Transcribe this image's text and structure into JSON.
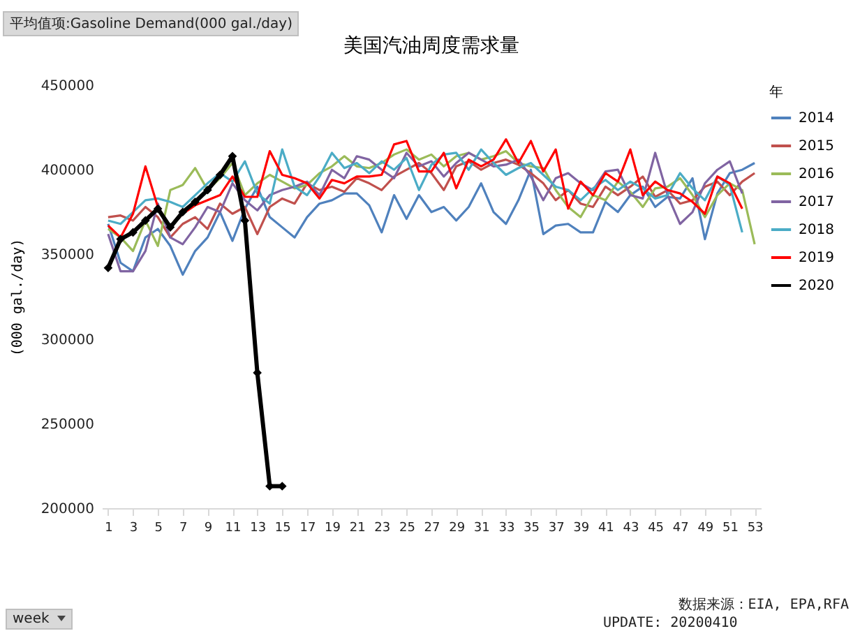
{
  "chart_data": {
    "type": "line",
    "title": "美国汽油周度需求量",
    "ylabel": "(000 gal./day)",
    "legend_title": "年",
    "legend": "right",
    "grid": false,
    "annotations": [
      "平均值项:Gasoline Demand(000 gal./day)",
      "数据来源：EIA, EPA,RFA",
      "UPDATE: 20200410",
      "week"
    ],
    "xlim": [
      0.5,
      53.5
    ],
    "xticks": [
      1,
      3,
      5,
      7,
      9,
      11,
      13,
      15,
      17,
      19,
      21,
      23,
      25,
      27,
      29,
      31,
      33,
      35,
      37,
      39,
      41,
      43,
      45,
      47,
      49,
      51,
      53
    ],
    "ylim": [
      200000,
      450000
    ],
    "yticks": [
      200000,
      250000,
      300000,
      350000,
      400000,
      450000
    ],
    "x": [
      1,
      2,
      3,
      4,
      5,
      6,
      7,
      8,
      9,
      10,
      11,
      12,
      13,
      14,
      15,
      16,
      17,
      18,
      19,
      20,
      21,
      22,
      23,
      24,
      25,
      26,
      27,
      28,
      29,
      30,
      31,
      32,
      33,
      34,
      35,
      36,
      37,
      38,
      39,
      40,
      41,
      42,
      43,
      44,
      45,
      46,
      47,
      48,
      49,
      50,
      51,
      52,
      53
    ],
    "series": [
      {
        "name": "2014",
        "color": "#4f81bd",
        "values": [
          368000,
          345000,
          340000,
          360000,
          365000,
          355000,
          338000,
          352000,
          360000,
          375000,
          358000,
          377000,
          390000,
          372000,
          366000,
          360000,
          372000,
          380000,
          382000,
          386000,
          386000,
          379000,
          363000,
          385000,
          371000,
          385000,
          375000,
          378000,
          370000,
          378000,
          392000,
          375000,
          368000,
          382000,
          400000,
          362000,
          367000,
          368000,
          363000,
          363000,
          381000,
          375000,
          385000,
          390000,
          378000,
          384000,
          383000,
          395000,
          359000,
          386000,
          398000,
          400000,
          404000
        ]
      },
      {
        "name": "2015",
        "color": "#c0504d",
        "values": [
          372000,
          373000,
          370000,
          378000,
          372000,
          360000,
          368000,
          372000,
          365000,
          380000,
          374000,
          378000,
          362000,
          378000,
          383000,
          380000,
          392000,
          388000,
          390000,
          387000,
          395000,
          392000,
          388000,
          396000,
          400000,
          404000,
          398000,
          388000,
          402000,
          405000,
          400000,
          404000,
          406000,
          403000,
          398000,
          392000,
          382000,
          388000,
          380000,
          378000,
          390000,
          385000,
          390000,
          396000,
          384000,
          388000,
          380000,
          382000,
          390000,
          393000,
          385000,
          393000,
          398000
        ]
      },
      {
        "name": "2016",
        "color": "#9bbb59",
        "values": [
          365000,
          360000,
          352000,
          370000,
          355000,
          388000,
          391000,
          401000,
          388000,
          395000,
          404000,
          385000,
          392000,
          397000,
          393000,
          389000,
          391000,
          398000,
          402000,
          408000,
          402000,
          401000,
          404000,
          409000,
          412000,
          406000,
          409000,
          402000,
          408000,
          410000,
          406000,
          408000,
          411000,
          404000,
          402000,
          401000,
          388000,
          378000,
          372000,
          385000,
          382000,
          393000,
          387000,
          378000,
          389000,
          390000,
          395000,
          385000,
          372000,
          385000,
          392000,
          388000,
          356000
        ]
      },
      {
        "name": "2017",
        "color": "#8064a2",
        "values": [
          362000,
          340000,
          340000,
          352000,
          380000,
          360000,
          356000,
          366000,
          378000,
          375000,
          392000,
          382000,
          376000,
          385000,
          388000,
          390000,
          393000,
          385000,
          400000,
          395000,
          408000,
          406000,
          400000,
          395000,
          410000,
          402000,
          405000,
          396000,
          404000,
          410000,
          406000,
          402000,
          403000,
          406000,
          396000,
          382000,
          395000,
          398000,
          392000,
          388000,
          399000,
          400000,
          385000,
          383000,
          410000,
          385000,
          368000,
          375000,
          392000,
          400000,
          405000,
          386000,
          null
        ]
      },
      {
        "name": "2018",
        "color": "#4bacc6",
        "values": [
          370000,
          368000,
          375000,
          382000,
          383000,
          381000,
          378000,
          385000,
          392000,
          398000,
          393000,
          405000,
          386000,
          380000,
          412000,
          390000,
          385000,
          396000,
          410000,
          401000,
          404000,
          398000,
          405000,
          400000,
          407000,
          388000,
          403000,
          409000,
          410000,
          400000,
          412000,
          404000,
          397000,
          401000,
          404000,
          397000,
          390000,
          388000,
          382000,
          389000,
          394000,
          388000,
          393000,
          389000,
          383000,
          385000,
          398000,
          389000,
          382000,
          396000,
          391000,
          363000,
          null
        ]
      },
      {
        "name": "2019",
        "color": "#ff0000",
        "values": [
          367000,
          360000,
          374000,
          402000,
          378000,
          366000,
          374000,
          379000,
          382000,
          385000,
          396000,
          384000,
          384000,
          411000,
          397000,
          395000,
          392000,
          383000,
          394000,
          392000,
          396000,
          396000,
          397000,
          415000,
          417000,
          399000,
          399000,
          410000,
          389000,
          406000,
          402000,
          406000,
          418000,
          404000,
          417000,
          399000,
          412000,
          377000,
          393000,
          385000,
          398000,
          393000,
          412000,
          385000,
          393000,
          388000,
          386000,
          381000,
          374000,
          396000,
          392000,
          377000,
          null
        ]
      },
      {
        "name": "2020",
        "color": "#000000",
        "marker": "diamond",
        "values": [
          342000,
          359000,
          363000,
          370000,
          377000,
          366000,
          375000,
          381000,
          388000,
          397000,
          408000,
          370000,
          280000,
          213000,
          213000,
          null,
          null,
          null,
          null,
          null,
          null,
          null,
          null,
          null,
          null,
          null,
          null,
          null,
          null,
          null,
          null,
          null,
          null,
          null,
          null,
          null,
          null,
          null,
          null,
          null,
          null,
          null,
          null,
          null,
          null,
          null,
          null,
          null,
          null,
          null,
          null,
          null,
          null
        ]
      }
    ]
  }
}
